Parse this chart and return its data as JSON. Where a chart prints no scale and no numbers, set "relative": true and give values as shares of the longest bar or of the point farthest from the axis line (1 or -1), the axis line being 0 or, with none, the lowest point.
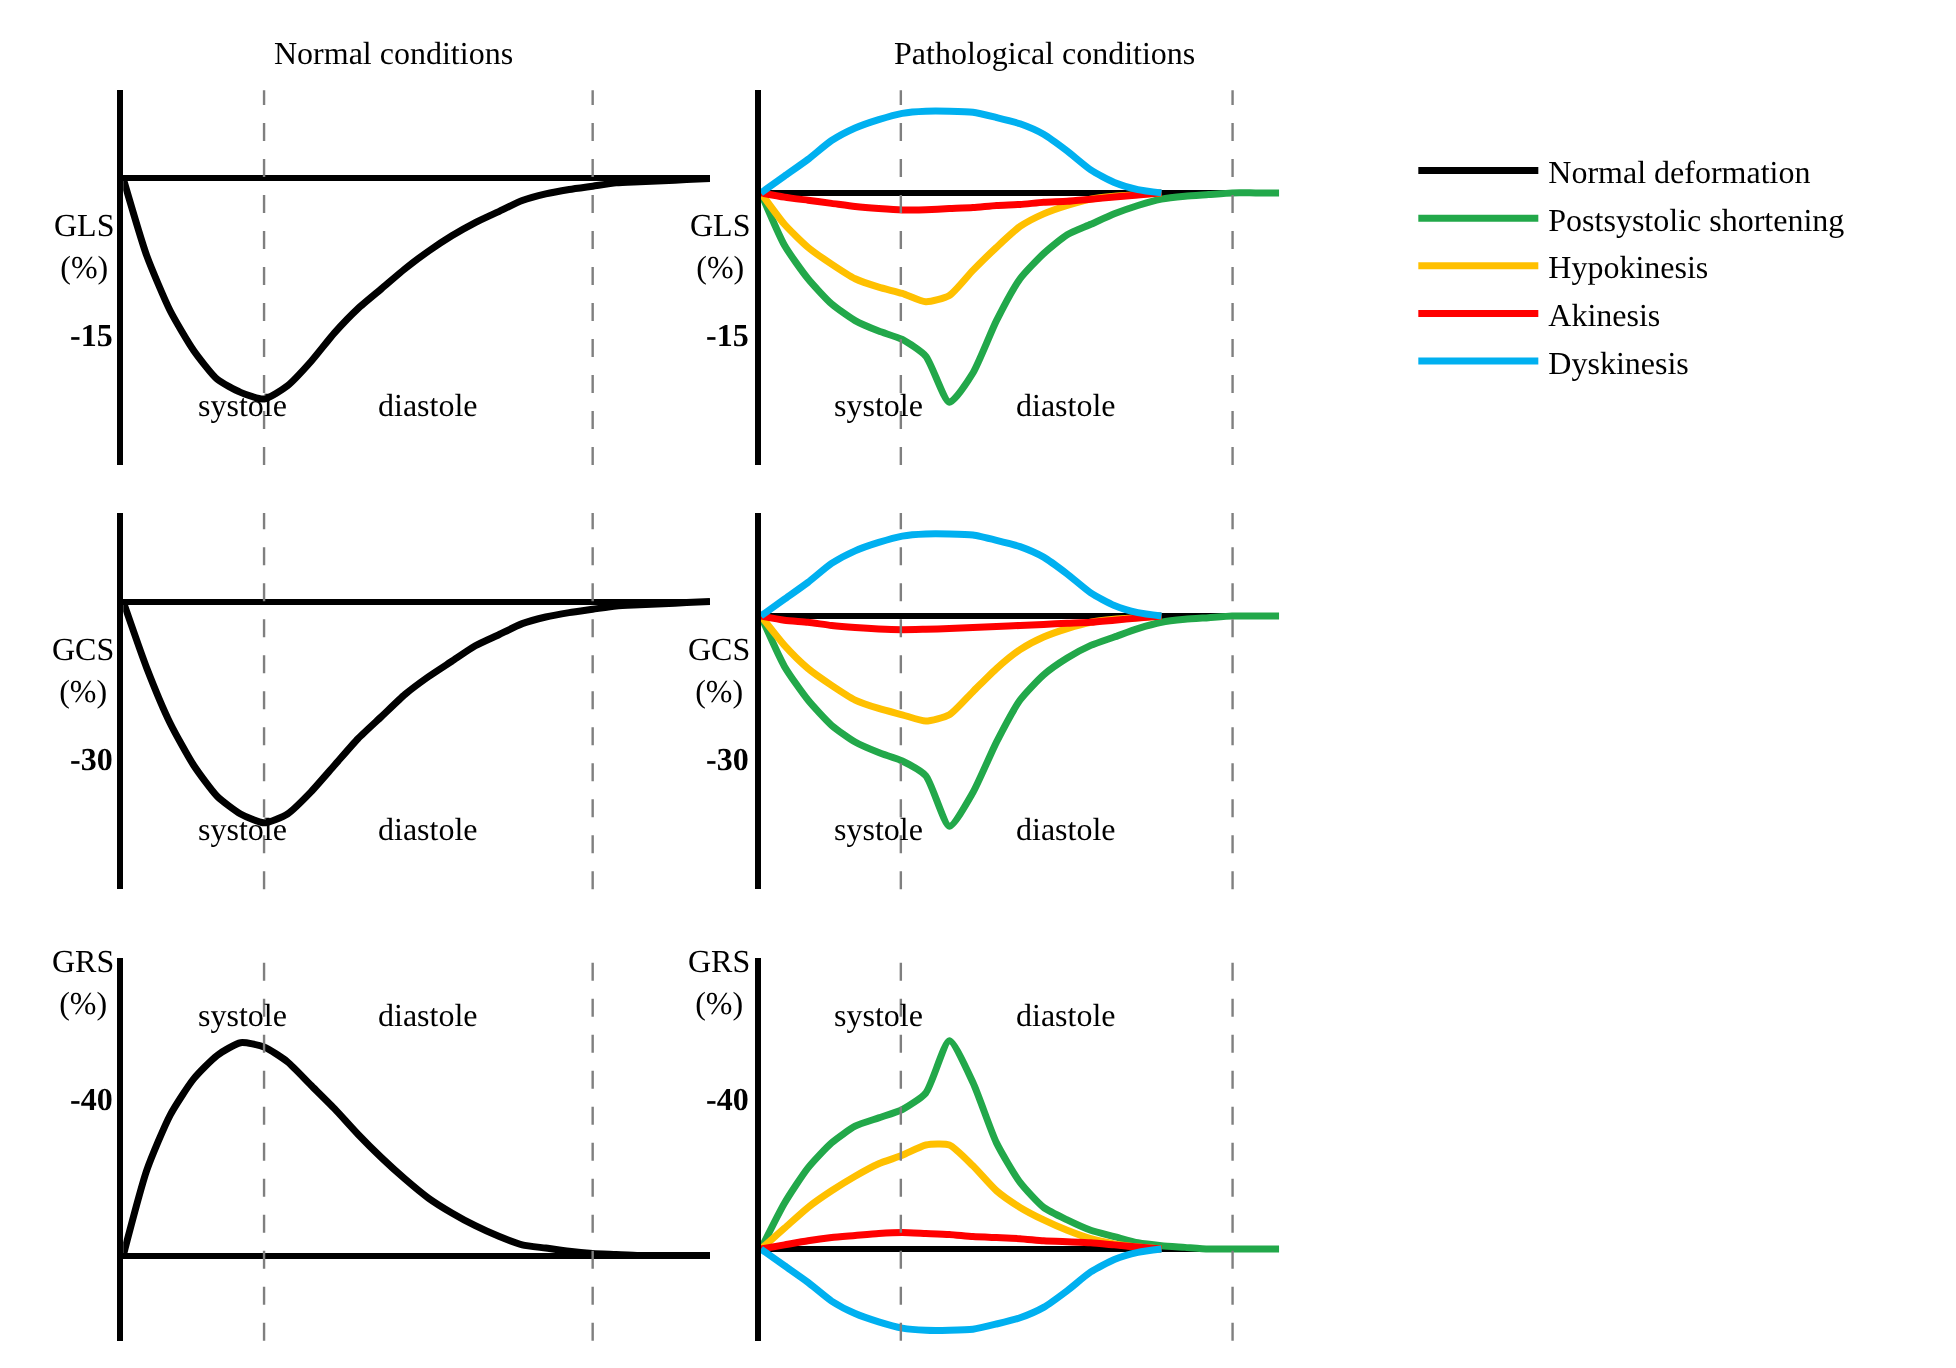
{
  "chart_data": [
    {
      "type": "line",
      "relative": true,
      "title": "Normal conditions",
      "ylabel": "GLS (%)",
      "legend": "right",
      "categories": [
        null,
        null,
        null,
        null,
        null,
        null,
        null,
        null,
        null,
        null,
        null,
        null,
        null,
        null,
        null,
        null,
        null,
        null,
        null,
        null,
        null,
        null,
        null,
        null,
        null,
        null
      ],
      "series": [
        {
          "name": "Normal deformation",
          "color": "#000000",
          "values": [
            0,
            -0.35,
            -0.6,
            -0.78,
            -0.91,
            -0.97,
            -1,
            -0.94,
            -0.83,
            -0.7,
            -0.59,
            -0.5,
            -0.41,
            -0.33,
            -0.26,
            -0.2,
            -0.15,
            -0.1,
            -0.07,
            -0.05,
            -0.035,
            -0.02,
            -0.015,
            -0.01,
            -0.005,
            0
          ]
        }
      ],
      "annotations": [
        "-15",
        "systole",
        "diastole"
      ]
    },
    {
      "type": "line",
      "relative": true,
      "title": "Pathological conditions",
      "ylabel": "GLS (%)",
      "legend": "right",
      "categories": [
        null,
        null,
        null,
        null,
        null,
        null,
        null,
        null,
        null,
        null,
        null,
        null,
        null,
        null,
        null,
        null,
        null,
        null,
        null,
        null,
        null,
        null,
        null
      ],
      "series": [
        {
          "name": "Postsystolic shortening",
          "color": "#22a84a",
          "values": [
            0,
            -0.25,
            -0.41,
            -0.53,
            -0.61,
            -0.66,
            -0.7,
            -0.78,
            -1,
            -0.86,
            -0.61,
            -0.41,
            -0.29,
            -0.2,
            -0.15,
            -0.1,
            -0.06,
            -0.03,
            -0.016,
            -0.008,
            0,
            0,
            0
          ]
        },
        {
          "name": "Hypokinesis",
          "color": "#ffc000",
          "values": [
            0,
            -0.15,
            -0.26,
            -0.34,
            -0.41,
            -0.45,
            -0.48,
            -0.52,
            -0.49,
            -0.37,
            -0.26,
            -0.16,
            -0.1,
            -0.06,
            -0.03,
            -0.016,
            -0.008,
            0,
            null,
            null,
            null,
            null,
            null
          ]
        },
        {
          "name": "Akinesis",
          "color": "#ff0000",
          "values": [
            0,
            -0.02,
            -0.035,
            -0.05,
            -0.065,
            -0.075,
            -0.082,
            -0.08,
            -0.075,
            -0.07,
            -0.06,
            -0.055,
            -0.045,
            -0.04,
            -0.03,
            -0.02,
            -0.01,
            0,
            null,
            null,
            null,
            null,
            null
          ]
        },
        {
          "name": "Dyskinesis",
          "color": "#00b0f0",
          "values": [
            0,
            0.08,
            0.16,
            0.25,
            0.31,
            0.35,
            0.38,
            0.39,
            0.39,
            0.385,
            0.36,
            0.33,
            0.28,
            0.2,
            0.11,
            0.05,
            0.016,
            0,
            null,
            null,
            null,
            null,
            null
          ]
        }
      ],
      "annotations": [
        "-15",
        "systole",
        "diastole"
      ]
    },
    {
      "type": "line",
      "relative": true,
      "ylabel": "GCS (%)",
      "legend": "right",
      "categories": [
        null,
        null,
        null,
        null,
        null,
        null,
        null,
        null,
        null,
        null,
        null,
        null,
        null,
        null,
        null,
        null,
        null,
        null,
        null,
        null,
        null,
        null,
        null,
        null,
        null,
        null
      ],
      "series": [
        {
          "name": "Normal deformation",
          "color": "#000000",
          "values": [
            0,
            -0.3,
            -0.55,
            -0.74,
            -0.88,
            -0.96,
            -1,
            -0.96,
            -0.86,
            -0.74,
            -0.62,
            -0.52,
            -0.42,
            -0.34,
            -0.27,
            -0.2,
            -0.15,
            -0.1,
            -0.07,
            -0.05,
            -0.035,
            -0.02,
            -0.015,
            -0.01,
            -0.005,
            0
          ]
        }
      ],
      "annotations": [
        "-30",
        "systole",
        "diastole"
      ]
    },
    {
      "type": "line",
      "relative": true,
      "ylabel": "GCS (%)",
      "legend": "right",
      "categories": [
        null,
        null,
        null,
        null,
        null,
        null,
        null,
        null,
        null,
        null,
        null,
        null,
        null,
        null,
        null,
        null,
        null,
        null,
        null,
        null,
        null,
        null,
        null
      ],
      "series": [
        {
          "name": "Postsystolic shortening",
          "color": "#22a84a",
          "values": [
            0,
            -0.24,
            -0.4,
            -0.52,
            -0.6,
            -0.65,
            -0.69,
            -0.76,
            -1,
            -0.84,
            -0.6,
            -0.4,
            -0.28,
            -0.2,
            -0.14,
            -0.1,
            -0.06,
            -0.03,
            -0.016,
            -0.008,
            0,
            0,
            0
          ]
        },
        {
          "name": "Hypokinesis",
          "color": "#ffc000",
          "values": [
            0,
            -0.14,
            -0.25,
            -0.33,
            -0.4,
            -0.44,
            -0.47,
            -0.5,
            -0.47,
            -0.36,
            -0.25,
            -0.16,
            -0.1,
            -0.06,
            -0.03,
            -0.016,
            -0.008,
            0,
            null,
            null,
            null,
            null,
            null
          ]
        },
        {
          "name": "Akinesis",
          "color": "#ff0000",
          "values": [
            0,
            -0.02,
            -0.03,
            -0.045,
            -0.055,
            -0.062,
            -0.065,
            -0.063,
            -0.06,
            -0.055,
            -0.05,
            -0.045,
            -0.04,
            -0.035,
            -0.03,
            -0.02,
            -0.01,
            0,
            null,
            null,
            null,
            null,
            null
          ]
        },
        {
          "name": "Dyskinesis",
          "color": "#00b0f0",
          "values": [
            0,
            0.08,
            0.16,
            0.25,
            0.31,
            0.35,
            0.38,
            0.39,
            0.39,
            0.385,
            0.36,
            0.33,
            0.28,
            0.2,
            0.11,
            0.05,
            0.016,
            0,
            null,
            null,
            null,
            null,
            null
          ]
        }
      ],
      "annotations": [
        "-30",
        "systole",
        "diastole"
      ]
    },
    {
      "type": "line",
      "relative": true,
      "ylabel": "GRS (%)",
      "legend": "right",
      "categories": [
        null,
        null,
        null,
        null,
        null,
        null,
        null,
        null,
        null,
        null,
        null,
        null,
        null,
        null,
        null,
        null,
        null,
        null,
        null,
        null,
        null,
        null,
        null,
        null,
        null,
        null
      ],
      "series": [
        {
          "name": "Normal deformation",
          "color": "#000000",
          "values": [
            0,
            0.4,
            0.66,
            0.83,
            0.94,
            1,
            0.98,
            0.91,
            0.8,
            0.69,
            0.57,
            0.46,
            0.36,
            0.27,
            0.2,
            0.14,
            0.09,
            0.05,
            0.035,
            0.02,
            0.01,
            0.005,
            0,
            0,
            0,
            0
          ]
        }
      ],
      "annotations": [
        "-40",
        "systole",
        "diastole"
      ]
    },
    {
      "type": "line",
      "relative": true,
      "ylabel": "GRS (%)",
      "legend": "right",
      "categories": [
        null,
        null,
        null,
        null,
        null,
        null,
        null,
        null,
        null,
        null,
        null,
        null,
        null,
        null,
        null,
        null,
        null,
        null,
        null,
        null,
        null,
        null,
        null
      ],
      "series": [
        {
          "name": "Postsystolic shortening",
          "color": "#22a84a",
          "values": [
            0,
            0.22,
            0.39,
            0.51,
            0.59,
            0.63,
            0.67,
            0.75,
            1,
            0.8,
            0.51,
            0.32,
            0.2,
            0.14,
            0.09,
            0.06,
            0.03,
            0.016,
            0.008,
            0,
            0,
            0,
            0
          ]
        },
        {
          "name": "Hypokinesis",
          "color": "#ffc000",
          "values": [
            0,
            0.1,
            0.2,
            0.28,
            0.35,
            0.41,
            0.45,
            0.5,
            0.5,
            0.4,
            0.28,
            0.2,
            0.14,
            0.09,
            0.05,
            0.025,
            0.01,
            0,
            null,
            null,
            null,
            null,
            null
          ]
        },
        {
          "name": "Akinesis",
          "color": "#ff0000",
          "values": [
            0,
            0.02,
            0.04,
            0.055,
            0.065,
            0.075,
            0.08,
            0.075,
            0.07,
            0.06,
            0.055,
            0.05,
            0.04,
            0.035,
            0.03,
            0.02,
            0.01,
            0,
            null,
            null,
            null,
            null,
            null
          ]
        },
        {
          "name": "Dyskinesis",
          "color": "#00b0f0",
          "values": [
            0,
            -0.08,
            -0.16,
            -0.25,
            -0.31,
            -0.35,
            -0.38,
            -0.39,
            -0.39,
            -0.385,
            -0.36,
            -0.33,
            -0.28,
            -0.2,
            -0.11,
            -0.05,
            -0.016,
            0,
            null,
            null,
            null,
            null,
            null
          ]
        }
      ],
      "annotations": [
        "-40",
        "systole",
        "diastole"
      ]
    }
  ]
}
